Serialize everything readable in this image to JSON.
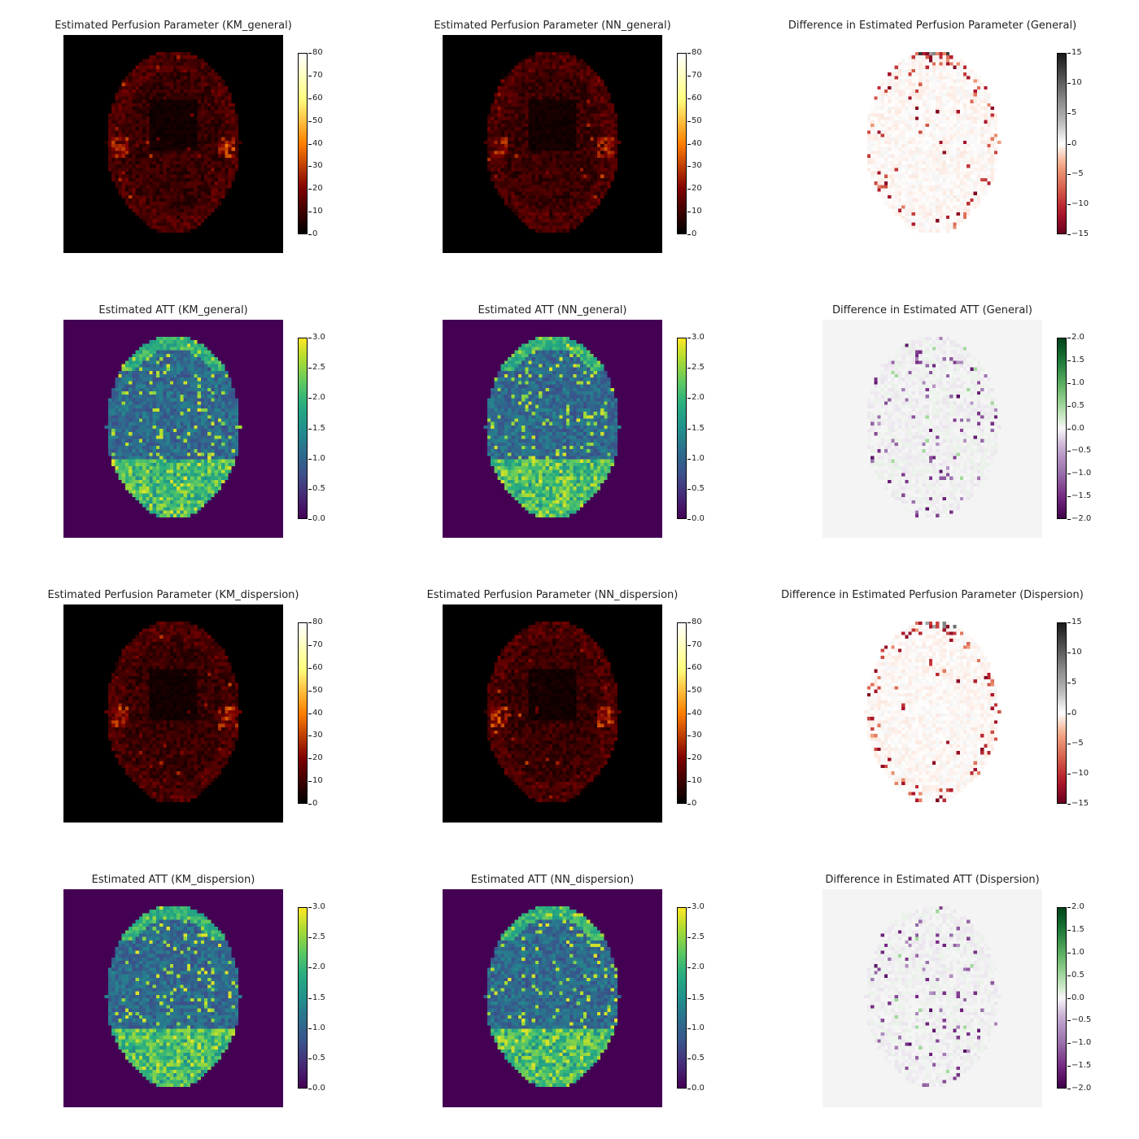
{
  "chart_data": [
    {
      "type": "heatmap",
      "title": "Estimated Perfusion Parameter (KM_general)",
      "colormap": "afmhot",
      "map_type": "cbf",
      "background": "#000000",
      "colorbar": {
        "range": [
          0,
          80
        ],
        "ticks": [
          "0",
          "10",
          "20",
          "30",
          "40",
          "50",
          "60",
          "70",
          "80"
        ]
      }
    },
    {
      "type": "heatmap",
      "title": "Estimated Perfusion Parameter (NN_general)",
      "colormap": "afmhot",
      "map_type": "cbf",
      "background": "#000000",
      "colorbar": {
        "range": [
          0,
          80
        ],
        "ticks": [
          "0",
          "10",
          "20",
          "30",
          "40",
          "50",
          "60",
          "70",
          "80"
        ]
      }
    },
    {
      "type": "heatmap",
      "title": "Difference in Estimated Perfusion Parameter (General)",
      "colormap": "RdGy",
      "map_type": "diff_cbf",
      "background": "#ffffff",
      "colorbar": {
        "range": [
          -15,
          15
        ],
        "ticks": [
          "−15",
          "−10",
          "−5",
          "0",
          "5",
          "10",
          "15"
        ]
      }
    },
    {
      "type": "heatmap",
      "title": "Estimated ATT (KM_general)",
      "colormap": "viridis",
      "map_type": "att",
      "background": "#440154",
      "colorbar": {
        "range": [
          0,
          3
        ],
        "ticks": [
          "0.0",
          "0.5",
          "1.0",
          "1.5",
          "2.0",
          "2.5",
          "3.0"
        ]
      }
    },
    {
      "type": "heatmap",
      "title": "Estimated ATT (NN_general)",
      "colormap": "viridis",
      "map_type": "att",
      "background": "#440154",
      "colorbar": {
        "range": [
          0,
          3
        ],
        "ticks": [
          "0.0",
          "0.5",
          "1.0",
          "1.5",
          "2.0",
          "2.5",
          "3.0"
        ]
      }
    },
    {
      "type": "heatmap",
      "title": "Difference in Estimated ATT (General)",
      "colormap": "PRGn",
      "map_type": "diff_att",
      "background": "#f4f4f4",
      "colorbar": {
        "range": [
          -2,
          2
        ],
        "ticks": [
          "−2.0",
          "−1.5",
          "−1.0",
          "−0.5",
          "0.0",
          "0.5",
          "1.0",
          "1.5",
          "2.0"
        ]
      }
    },
    {
      "type": "heatmap",
      "title": "Estimated Perfusion Parameter (KM_dispersion)",
      "colormap": "afmhot",
      "map_type": "cbf",
      "background": "#000000",
      "colorbar": {
        "range": [
          0,
          80
        ],
        "ticks": [
          "0",
          "10",
          "20",
          "30",
          "40",
          "50",
          "60",
          "70",
          "80"
        ]
      }
    },
    {
      "type": "heatmap",
      "title": "Estimated Perfusion Parameter (NN_dispersion)",
      "colormap": "afmhot",
      "map_type": "cbf",
      "background": "#000000",
      "colorbar": {
        "range": [
          0,
          80
        ],
        "ticks": [
          "0",
          "10",
          "20",
          "30",
          "40",
          "50",
          "60",
          "70",
          "80"
        ]
      }
    },
    {
      "type": "heatmap",
      "title": "Difference in Estimated Perfusion Parameter (Dispersion)",
      "colormap": "RdGy",
      "map_type": "diff_cbf",
      "background": "#ffffff",
      "colorbar": {
        "range": [
          -15,
          15
        ],
        "ticks": [
          "−15",
          "−10",
          "−5",
          "0",
          "5",
          "10",
          "15"
        ]
      }
    },
    {
      "type": "heatmap",
      "title": "Estimated ATT (KM_dispersion)",
      "colormap": "viridis",
      "map_type": "att",
      "background": "#440154",
      "colorbar": {
        "range": [
          0,
          3
        ],
        "ticks": [
          "0.0",
          "0.5",
          "1.0",
          "1.5",
          "2.0",
          "2.5",
          "3.0"
        ]
      }
    },
    {
      "type": "heatmap",
      "title": "Estimated ATT (NN_dispersion)",
      "colormap": "viridis",
      "map_type": "att",
      "background": "#440154",
      "colorbar": {
        "range": [
          0,
          3
        ],
        "ticks": [
          "0.0",
          "0.5",
          "1.0",
          "1.5",
          "2.0",
          "2.5",
          "3.0"
        ]
      }
    },
    {
      "type": "heatmap",
      "title": "Difference in Estimated ATT (Dispersion)",
      "colormap": "PRGn",
      "map_type": "diff_att",
      "background": "#f4f4f4",
      "colorbar": {
        "range": [
          -2,
          2
        ],
        "ticks": [
          "−2.0",
          "−1.5",
          "−1.0",
          "−0.5",
          "0.0",
          "0.5",
          "1.0",
          "1.5",
          "2.0"
        ]
      }
    }
  ]
}
